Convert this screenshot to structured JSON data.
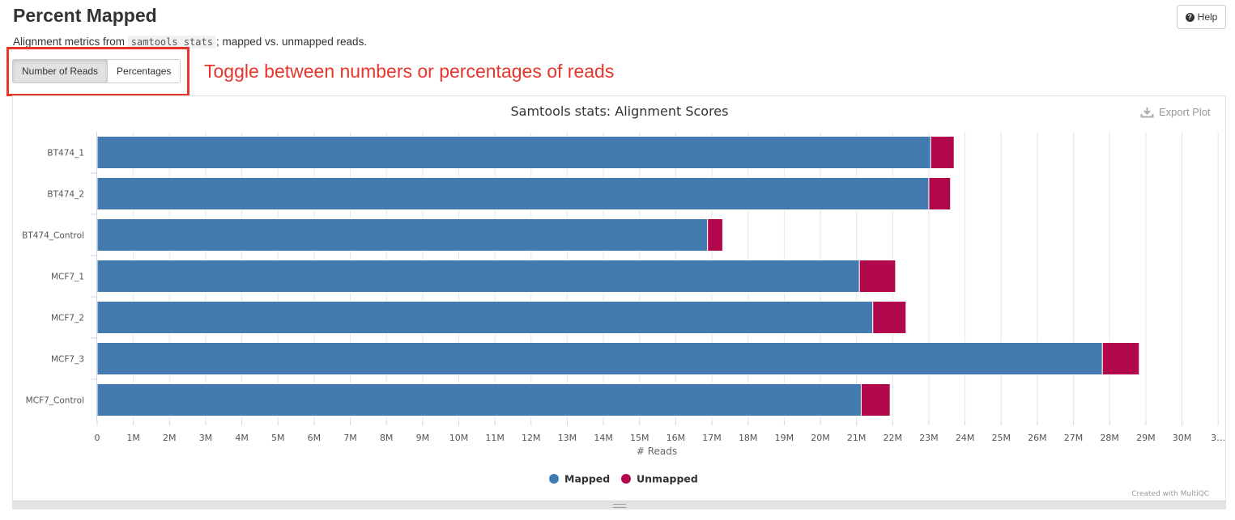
{
  "header": {
    "title": "Percent Mapped",
    "help_label": "Help",
    "description_prefix": "Alignment metrics from ",
    "description_code": "samtools stats",
    "description_suffix": "; mapped vs. unmapped reads."
  },
  "toggle": {
    "options": [
      "Number of Reads",
      "Percentages"
    ],
    "active": "Number of Reads"
  },
  "annotation": {
    "text": "Toggle between numbers or percentages of reads",
    "color": "#e8352c"
  },
  "plot": {
    "export_label": "Export Plot",
    "credits": "Created with MultiQC"
  },
  "chart_data": {
    "type": "bar",
    "orientation": "horizontal",
    "stacked": true,
    "title": "Samtools stats: Alignment Scores",
    "xlabel": "# Reads",
    "ylabel": "",
    "xlim": [
      0,
      31000000
    ],
    "x_ticks": [
      "0",
      "1M",
      "2M",
      "3M",
      "4M",
      "5M",
      "6M",
      "7M",
      "8M",
      "9M",
      "10M",
      "11M",
      "12M",
      "13M",
      "14M",
      "15M",
      "16M",
      "17M",
      "18M",
      "19M",
      "20M",
      "21M",
      "22M",
      "23M",
      "24M",
      "25M",
      "26M",
      "27M",
      "28M",
      "29M",
      "30M",
      "3…"
    ],
    "categories": [
      "BT474_1",
      "BT474_2",
      "BT474_Control",
      "MCF7_1",
      "MCF7_2",
      "MCF7_3",
      "MCF7_Control"
    ],
    "series": [
      {
        "name": "Mapped",
        "color": "#437bb1",
        "values": [
          23050000,
          23000000,
          16880000,
          21080000,
          21450000,
          27800000,
          21130000
        ]
      },
      {
        "name": "Unmapped",
        "color": "#b1084c",
        "values": [
          650000,
          600000,
          420000,
          1000000,
          920000,
          1020000,
          800000
        ]
      }
    ],
    "grid": true,
    "legend_position": "bottom-center"
  }
}
